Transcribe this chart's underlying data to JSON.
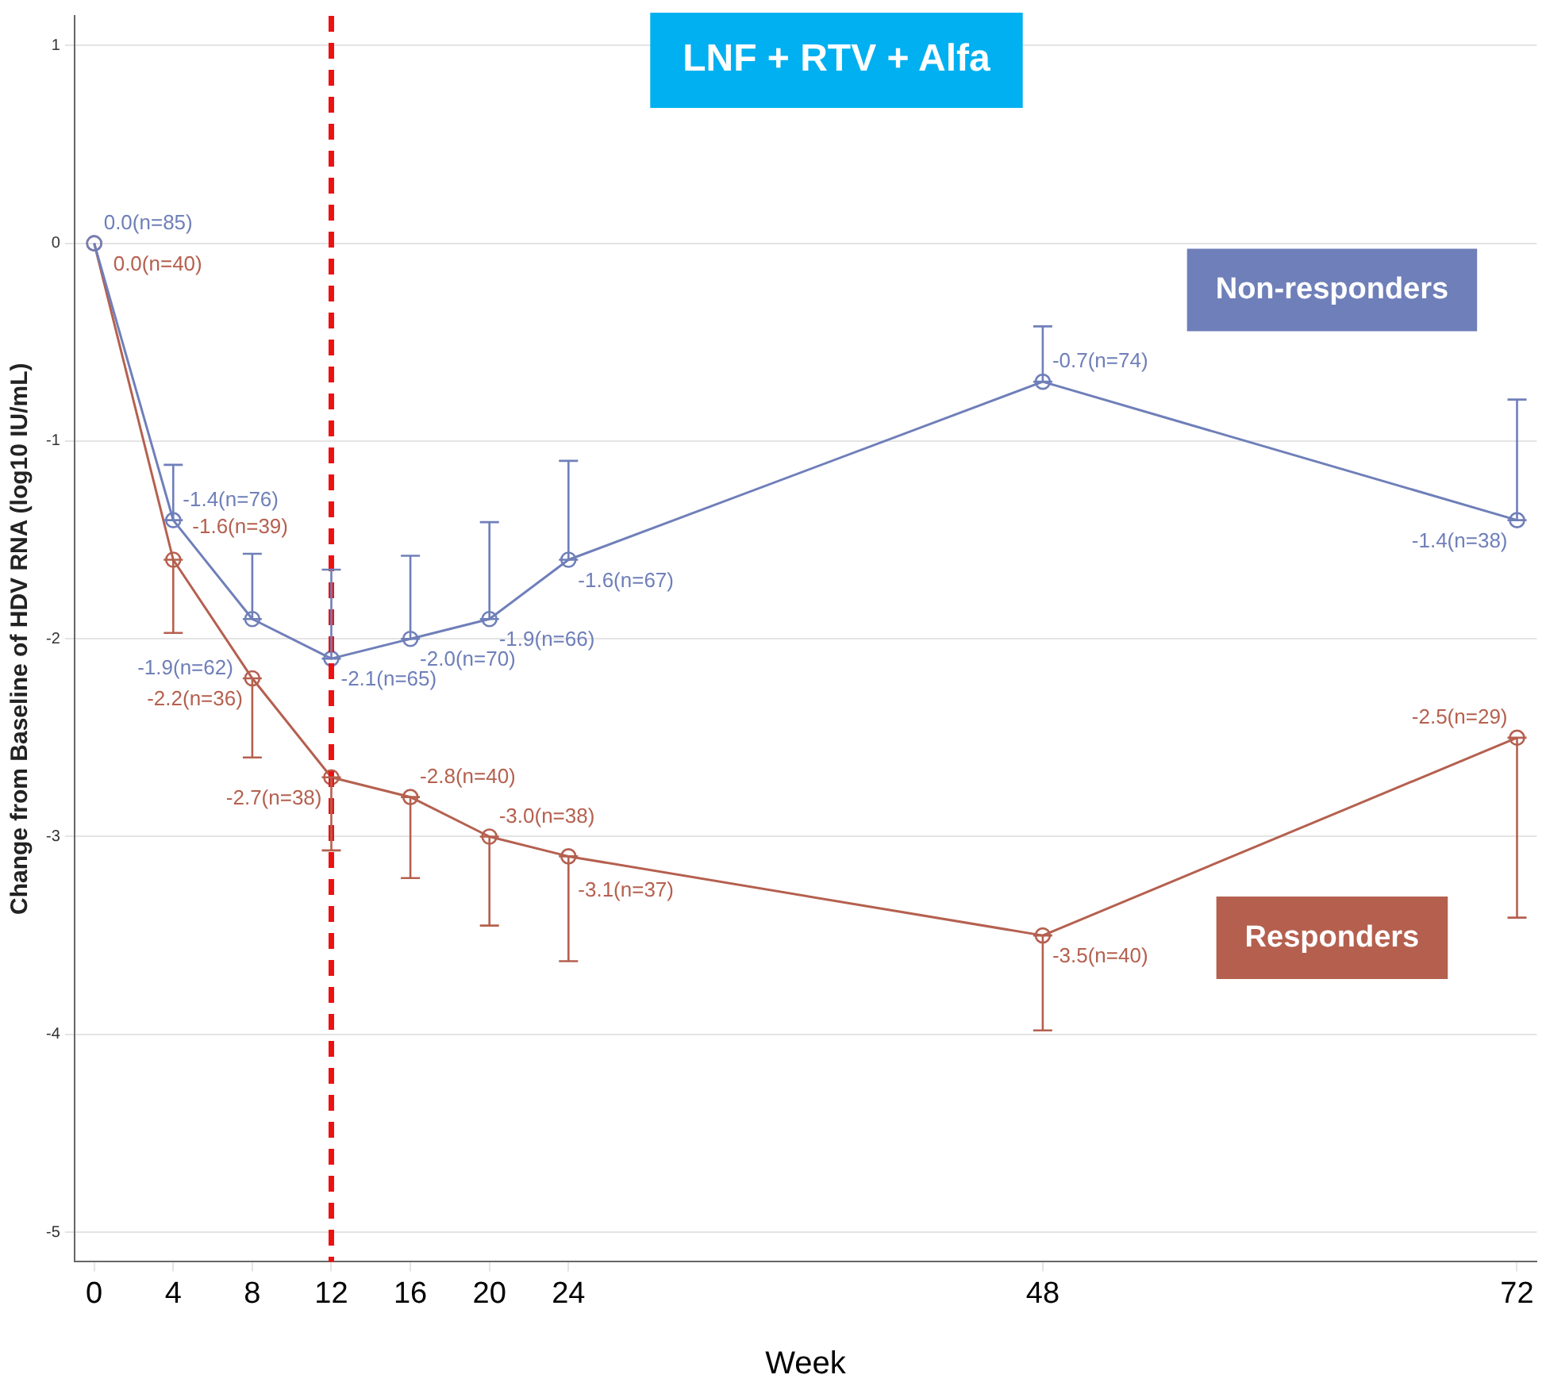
{
  "chart_data": {
    "type": "line",
    "title": "LNF + RTV + Alfa",
    "xlabel": "Week",
    "ylabel": "Change from Baseline of HDV RNA (log10 IU/mL)",
    "x": [
      0,
      4,
      8,
      12,
      16,
      20,
      24,
      48,
      72
    ],
    "series": [
      {
        "name": "Non-responders",
        "color": "#6f7fb9",
        "values": [
          0.0,
          -1.4,
          -1.9,
          -2.1,
          -2.0,
          -1.9,
          -1.6,
          -0.7,
          -1.4
        ],
        "errors": [
          null,
          [
            -1.4,
            -1.12
          ],
          [
            -1.9,
            -1.57
          ],
          [
            -2.1,
            -1.65
          ],
          [
            -2.0,
            -1.58
          ],
          [
            -1.9,
            -1.41
          ],
          [
            -1.6,
            -1.1
          ],
          [
            -0.7,
            -0.42
          ],
          [
            -1.4,
            -0.79
          ]
        ],
        "value_labels": [
          "0.0(n=85)",
          "-1.4(n=76)",
          "-1.9(n=62)",
          "-2.1(n=65)",
          "-2.0(n=70)",
          "-1.9(n=66)",
          "-1.6(n=67)",
          "-0.7(n=74)",
          "-1.4(n=38)"
        ]
      },
      {
        "name": "Responders",
        "color": "#b5604f",
        "values": [
          0.0,
          -1.6,
          -2.2,
          -2.7,
          -2.8,
          -3.0,
          -3.1,
          -3.5,
          -2.5
        ],
        "errors": [
          null,
          [
            -1.97,
            -1.6
          ],
          [
            -2.6,
            -2.2
          ],
          [
            -3.07,
            -2.7
          ],
          [
            -3.21,
            -2.8
          ],
          [
            -3.45,
            -3.0
          ],
          [
            -3.63,
            -3.1
          ],
          [
            -3.98,
            -3.5
          ],
          [
            -3.41,
            -2.5
          ]
        ],
        "value_labels": [
          "0.0(n=40)",
          "-1.6(n=39)",
          "-2.2(n=36)",
          "-2.7(n=38)",
          "-2.8(n=40)",
          "-3.0(n=38)",
          "-3.1(n=37)",
          "-3.5(n=40)",
          "-2.5(n=29)"
        ]
      }
    ],
    "xlim": [
      -1,
      73
    ],
    "xticks": [
      0,
      4,
      8,
      12,
      16,
      20,
      24,
      48,
      72
    ],
    "ylim": [
      -5.15,
      1.15
    ],
    "yticks": [
      -5,
      -4,
      -3,
      -2,
      -1,
      0,
      1
    ],
    "grid": "y",
    "legend": false,
    "marker": "circle",
    "line_style": "solid",
    "ref_lines": [
      {
        "axis": "x",
        "value": 12,
        "color": "#ee1111",
        "line_style": "dashed"
      }
    ]
  }
}
